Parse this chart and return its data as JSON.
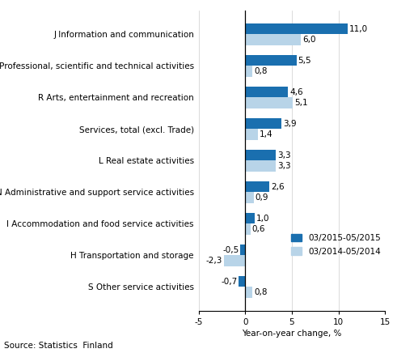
{
  "categories": [
    "S Other service activities",
    "H Transportation and storage",
    "I Accommodation and food service activities",
    "N Administrative and support service activities",
    "L Real estate activities",
    "Services, total (excl. Trade)",
    "R Arts, entertainment and recreation",
    "M Professional, scientific and technical activities",
    "J Information and communication"
  ],
  "series_2015": [
    -0.7,
    -0.5,
    1.0,
    2.6,
    3.3,
    3.9,
    4.6,
    5.5,
    11.0
  ],
  "series_2014": [
    0.8,
    -2.3,
    0.6,
    0.9,
    3.3,
    1.4,
    5.1,
    0.8,
    6.0
  ],
  "color_2015": "#1a6faf",
  "color_2014": "#b8d4e8",
  "legend_2015": "03/2015-05/2015",
  "legend_2014": "03/2014-05/2014",
  "xlabel": "Year-on-year change, %",
  "source": "Source: Statistics  Finland",
  "xlim": [
    -5,
    15
  ],
  "xticks": [
    -5,
    0,
    5,
    10,
    15
  ],
  "bar_height": 0.35,
  "label_fontsize": 7.5,
  "tick_fontsize": 7.5,
  "source_fontsize": 7.5,
  "legend_fontsize": 7.5
}
